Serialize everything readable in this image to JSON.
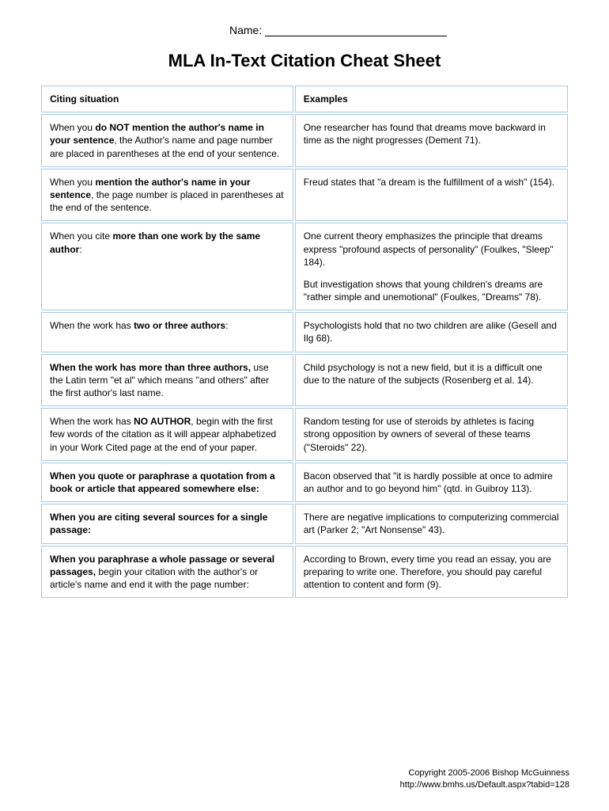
{
  "name_label": "Name:",
  "title": "MLA In-Text Citation Cheat Sheet",
  "headers": {
    "col1": "Citing situation",
    "col2": "Examples"
  },
  "rows": [
    {
      "left_pre": "When you ",
      "left_bold": "do NOT mention the author's name in your sentence",
      "left_post": ", the Author's name and page number are placed in parentheses at the end of your sentence.",
      "right": "One researcher has found that dreams move backward in time as the night progresses (Dement 71)."
    },
    {
      "left_pre": "When you ",
      "left_bold": "mention the author's name in your sentence",
      "left_post": ", the page number is placed in parentheses at the end of the sentence.",
      "right": "Freud states that \"a dream is the fulfillment of a wish\" (154)."
    },
    {
      "left_pre": "When you cite ",
      "left_bold": "more than one work by the same author",
      "left_post": ":",
      "right": "One current theory emphasizes the principle that dreams express \"profound aspects of personality\" (Foulkes, \"Sleep\" 184).",
      "right2": "But investigation shows that young children's dreams are \"rather simple and unemotional\" (Foulkes, \"Dreams\" 78)."
    },
    {
      "left_pre": "When the work has ",
      "left_bold": "two or three authors",
      "left_post": ":",
      "right": "Psychologists hold that no two children are alike (Gesell and Ilg 68)."
    },
    {
      "left_pre": "",
      "left_bold": "When the work has more than three authors,",
      "left_post": " use the Latin term \"et al\" which means \"and others\" after the first author's last name.",
      "right": "Child psychology is not a new field, but it is a difficult one due to the nature of the subjects (Rosenberg et al. 14)."
    },
    {
      "left_pre": "When the work has ",
      "left_bold": "NO AUTHOR",
      "left_post": ", begin with the first few words of the citation as it will appear alphabetized in your Work Cited page at the end of your paper.",
      "right": "Random testing for use of steroids by athletes is facing strong opposition by owners of several of these teams (\"Steroids\" 22)."
    },
    {
      "left_pre": "",
      "left_bold": "When you quote or paraphrase a quotation from a book or article that appeared somewhere else:",
      "left_post": "",
      "right": "Bacon observed that \"it is hardly possible at once to admire an author and to go beyond him\" (qtd. in Guibroy 113)."
    },
    {
      "left_pre": "",
      "left_bold": "When you are citing several sources for a single passage:",
      "left_post": "",
      "right": "There are negative implications to computerizing commercial art (Parker 2; \"Art Nonsense\" 43)."
    },
    {
      "left_pre": "",
      "left_bold": "When you paraphrase a whole passage or several passages,",
      "left_post": " begin your citation with the author's or article's name and end it with the page number:",
      "right": "According to Brown, every time you read an essay, you are preparing to write one. Therefore, you should pay careful attention to content and form (9)."
    }
  ],
  "footer": {
    "copyright": "Copyright 2005-2006 Bishop McGuinness",
    "url": "http://www.bmhs.us/Default.aspx?tabid=128"
  }
}
